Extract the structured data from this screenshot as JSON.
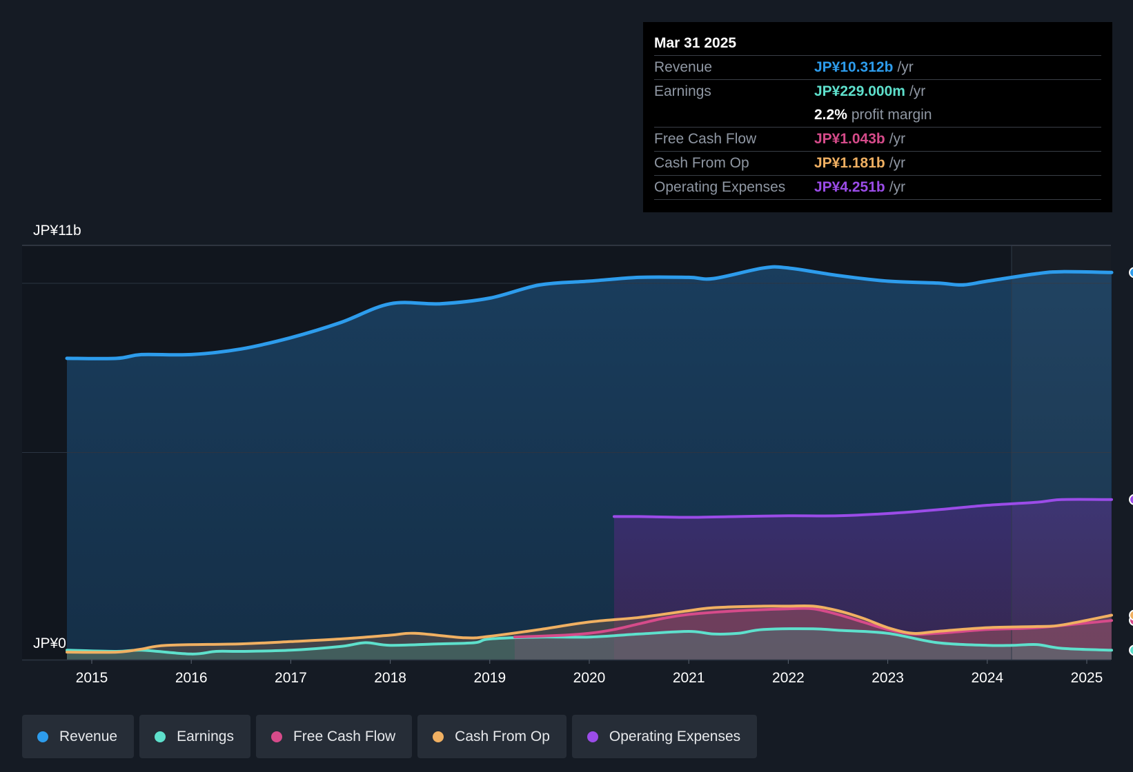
{
  "chart_data": {
    "type": "area",
    "y_axis": {
      "top_label": "JP¥11b",
      "bottom_label": "JP¥0",
      "ylim": [
        0,
        11
      ]
    },
    "x_axis": {
      "ticks": [
        "2015",
        "2016",
        "2017",
        "2018",
        "2019",
        "2020",
        "2021",
        "2022",
        "2023",
        "2024",
        "2025"
      ]
    },
    "series": [
      {
        "name": "Revenue",
        "color": "#2d9cec",
        "x": [
          2014.75,
          2015.25,
          2015.5,
          2016.0,
          2016.5,
          2017.0,
          2017.5,
          2018.0,
          2018.5,
          2019.0,
          2019.5,
          2020.0,
          2020.5,
          2021.0,
          2021.25,
          2021.75,
          2022.0,
          2022.5,
          2023.0,
          2023.5,
          2023.75,
          2024.0,
          2024.5,
          2024.75,
          2025.25
        ],
        "y": [
          8.0,
          8.0,
          8.1,
          8.1,
          8.25,
          8.55,
          8.95,
          9.45,
          9.45,
          9.6,
          9.95,
          10.05,
          10.15,
          10.15,
          10.12,
          10.4,
          10.4,
          10.2,
          10.05,
          10.0,
          9.95,
          10.05,
          10.25,
          10.3,
          10.28
        ]
      },
      {
        "name": "Earnings",
        "color": "#5ee0cc",
        "x": [
          2014.75,
          2015.25,
          2015.5,
          2016.0,
          2016.25,
          2016.5,
          2017.0,
          2017.5,
          2017.75,
          2018.0,
          2018.5,
          2018.85,
          2019.0,
          2019.5,
          2020.0,
          2020.5,
          2021.0,
          2021.25,
          2021.5,
          2021.75,
          2022.25,
          2022.5,
          2023.0,
          2023.5,
          2024.0,
          2024.25,
          2024.5,
          2024.75,
          2025.25
        ],
        "y": [
          0.25,
          0.22,
          0.25,
          0.15,
          0.22,
          0.22,
          0.25,
          0.35,
          0.45,
          0.38,
          0.42,
          0.45,
          0.55,
          0.6,
          0.6,
          0.68,
          0.75,
          0.68,
          0.7,
          0.8,
          0.82,
          0.78,
          0.7,
          0.45,
          0.38,
          0.38,
          0.4,
          0.3,
          0.25
        ]
      },
      {
        "name": "Free Cash Flow",
        "color": "#d64b8a",
        "x": [
          2019.25,
          2019.75,
          2020.0,
          2020.25,
          2020.5,
          2020.75,
          2021.0,
          2021.5,
          2022.0,
          2022.25,
          2022.5,
          2022.75,
          2023.0,
          2023.25,
          2023.5,
          2024.0,
          2024.5,
          2025.25
        ],
        "y": [
          0.6,
          0.65,
          0.7,
          0.8,
          0.95,
          1.1,
          1.2,
          1.3,
          1.35,
          1.35,
          1.2,
          1.0,
          0.8,
          0.68,
          0.7,
          0.8,
          0.85,
          1.04
        ]
      },
      {
        "name": "Cash From Op",
        "color": "#f0b062",
        "x": [
          2014.75,
          2015.25,
          2015.5,
          2015.75,
          2016.5,
          2017.0,
          2017.5,
          2018.0,
          2018.25,
          2018.75,
          2019.0,
          2019.5,
          2020.0,
          2020.5,
          2021.0,
          2021.25,
          2021.75,
          2022.0,
          2022.25,
          2022.5,
          2022.75,
          2023.0,
          2023.25,
          2023.5,
          2024.0,
          2024.5,
          2024.75,
          2025.25
        ],
        "y": [
          0.2,
          0.2,
          0.28,
          0.38,
          0.42,
          0.48,
          0.55,
          0.65,
          0.7,
          0.58,
          0.62,
          0.8,
          1.0,
          1.12,
          1.3,
          1.38,
          1.42,
          1.42,
          1.42,
          1.3,
          1.1,
          0.85,
          0.7,
          0.75,
          0.85,
          0.88,
          0.92,
          1.18
        ]
      },
      {
        "name": "Operating Expenses",
        "color": "#9b4ce8",
        "x": [
          2020.25,
          2020.5,
          2021.0,
          2021.5,
          2022.0,
          2022.5,
          2023.0,
          2023.5,
          2024.0,
          2024.5,
          2024.75,
          2025.25
        ],
        "y": [
          3.8,
          3.8,
          3.78,
          3.8,
          3.82,
          3.82,
          3.88,
          3.98,
          4.1,
          4.18,
          4.25,
          4.25
        ]
      }
    ]
  },
  "tooltip": {
    "date": "Mar 31 2025",
    "rows": [
      {
        "label": "Revenue",
        "value": "JP¥10.312b",
        "unit": "/yr",
        "color": "#2d9cec"
      },
      {
        "label": "Earnings",
        "value": "JP¥229.000m",
        "unit": "/yr",
        "color": "#5ee0cc"
      },
      {
        "label": "",
        "value": "2.2%",
        "unit": "profit margin",
        "color": "#ffffff"
      },
      {
        "label": "Free Cash Flow",
        "value": "JP¥1.043b",
        "unit": "/yr",
        "color": "#d64b8a"
      },
      {
        "label": "Cash From Op",
        "value": "JP¥1.181b",
        "unit": "/yr",
        "color": "#f0b062"
      },
      {
        "label": "Operating Expenses",
        "value": "JP¥4.251b",
        "unit": "/yr",
        "color": "#9b4ce8"
      }
    ]
  },
  "legend": [
    {
      "label": "Revenue",
      "color": "#2d9cec"
    },
    {
      "label": "Earnings",
      "color": "#5ee0cc"
    },
    {
      "label": "Free Cash Flow",
      "color": "#d64b8a"
    },
    {
      "label": "Cash From Op",
      "color": "#f0b062"
    },
    {
      "label": "Operating Expenses",
      "color": "#9b4ce8"
    }
  ]
}
